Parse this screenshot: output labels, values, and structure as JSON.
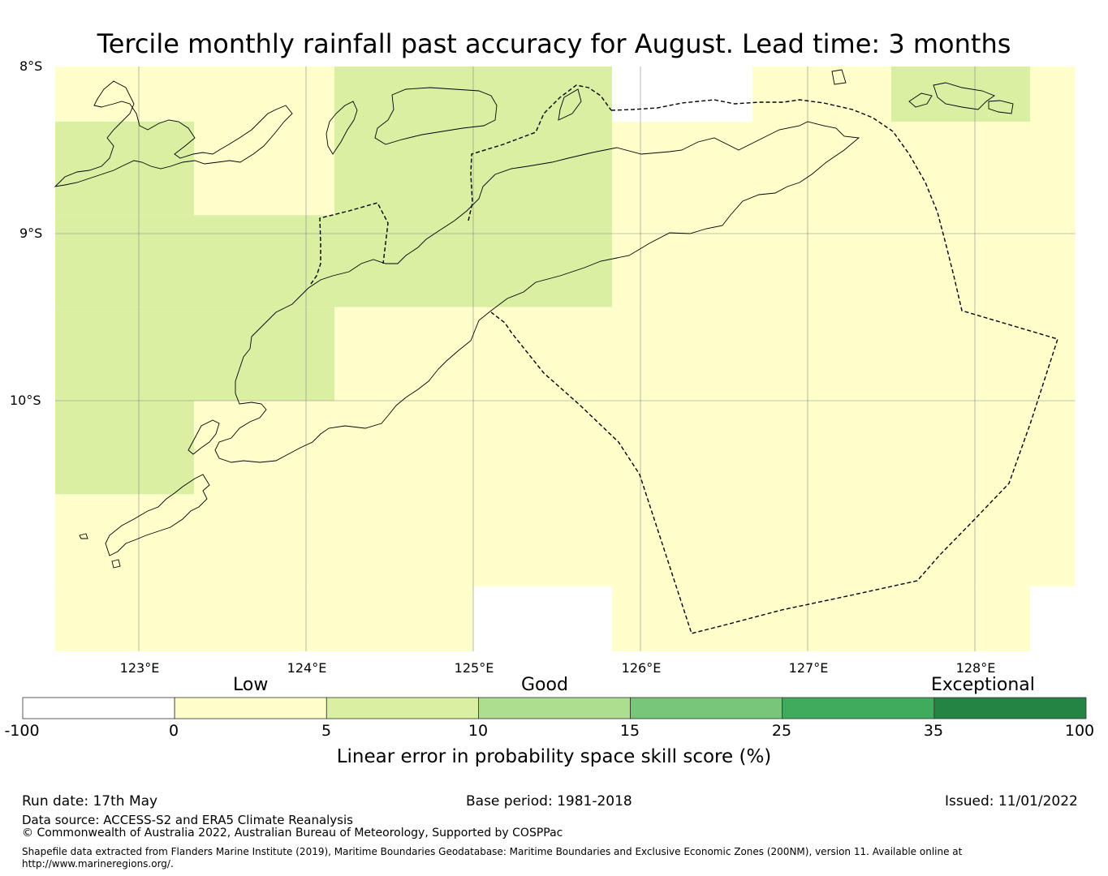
{
  "title": "Tercile monthly rainfall past accuracy for August. Lead time: 3 months",
  "map": {
    "lat_labels": [
      "8°S",
      "9°S",
      "10°S"
    ],
    "lon_labels": [
      "123°E",
      "124°E",
      "125°E",
      "126°E",
      "127°E",
      "128°E"
    ],
    "lon_range": [
      122.5,
      128.6
    ],
    "lat_range": [
      -11.5,
      -8.0
    ],
    "grid_lines": true,
    "cells": [
      {
        "lon": [
          122.5,
          124.17
        ],
        "lat": [
          -8.0,
          -8.33
        ],
        "class": "low"
      },
      {
        "lon": [
          124.17,
          125.83
        ],
        "lat": [
          -8.0,
          -8.33
        ],
        "class": "good"
      },
      {
        "lon": [
          126.67,
          127.5
        ],
        "lat": [
          -8.0,
          -8.33
        ],
        "class": "low"
      },
      {
        "lon": [
          127.5,
          128.33
        ],
        "lat": [
          -8.0,
          -8.33
        ],
        "class": "good"
      },
      {
        "lon": [
          128.33,
          128.6
        ],
        "lat": [
          -8.0,
          -8.33
        ],
        "class": "low"
      },
      {
        "lon": [
          122.5,
          123.33
        ],
        "lat": [
          -8.33,
          -8.89
        ],
        "class": "good"
      },
      {
        "lon": [
          123.33,
          124.17
        ],
        "lat": [
          -8.33,
          -8.89
        ],
        "class": "low"
      },
      {
        "lon": [
          124.17,
          125.83
        ],
        "lat": [
          -8.33,
          -9.44
        ],
        "class": "good"
      },
      {
        "lon": [
          125.83,
          128.6
        ],
        "lat": [
          -8.33,
          -9.44
        ],
        "class": "low"
      },
      {
        "lon": [
          122.5,
          124.17
        ],
        "lat": [
          -8.89,
          -9.44
        ],
        "class": "good"
      },
      {
        "lon": [
          122.5,
          124.17
        ],
        "lat": [
          -9.44,
          -10.0
        ],
        "class": "good"
      },
      {
        "lon": [
          124.17,
          128.6
        ],
        "lat": [
          -9.44,
          -10.0
        ],
        "class": "low"
      },
      {
        "lon": [
          122.5,
          123.33
        ],
        "lat": [
          -10.0,
          -10.56
        ],
        "class": "good"
      },
      {
        "lon": [
          123.33,
          128.6
        ],
        "lat": [
          -10.0,
          -10.56
        ],
        "class": "low"
      },
      {
        "lon": [
          122.5,
          128.6
        ],
        "lat": [
          -10.56,
          -11.11
        ],
        "class": "low"
      },
      {
        "lon": [
          122.5,
          125.0
        ],
        "lat": [
          -11.11,
          -11.5
        ],
        "class": "low"
      },
      {
        "lon": [
          125.83,
          128.33
        ],
        "lat": [
          -11.11,
          -11.5
        ],
        "class": "low"
      }
    ]
  },
  "colorbar": {
    "words": [
      "Low",
      "Good",
      "Exceptional"
    ],
    "ticks": [
      "-100",
      "0",
      "5",
      "10",
      "15",
      "25",
      "35",
      "100"
    ],
    "colors": [
      "#ffffff",
      "#ffffcc",
      "#d9f0a3",
      "#addd8e",
      "#78c679",
      "#41ab5d",
      "#238443"
    ],
    "label": "Linear error in probability space skill score (%)"
  },
  "colors": {
    "low": "#ffffcc",
    "good": "#d9f0a3"
  },
  "footer": {
    "run_date": "Run date: 17th May",
    "base_period": "Base period: 1981-2018",
    "issued": "Issued: 11/01/2022",
    "data_source": "Data source: ACCESS-S2 and ERA5 Climate Reanalysis",
    "copyright": "© Commonwealth of Australia 2022, Australian Bureau of Meteorology, Supported by COSPPac",
    "shapefile": "Shapefile data extracted from Flanders Marine Institute (2019), Maritime Boundaries Geodatabase: Maritime Boundaries and Exclusive Economic Zones (200NM), version 11. Available online at http://www.marineregions.org/."
  }
}
